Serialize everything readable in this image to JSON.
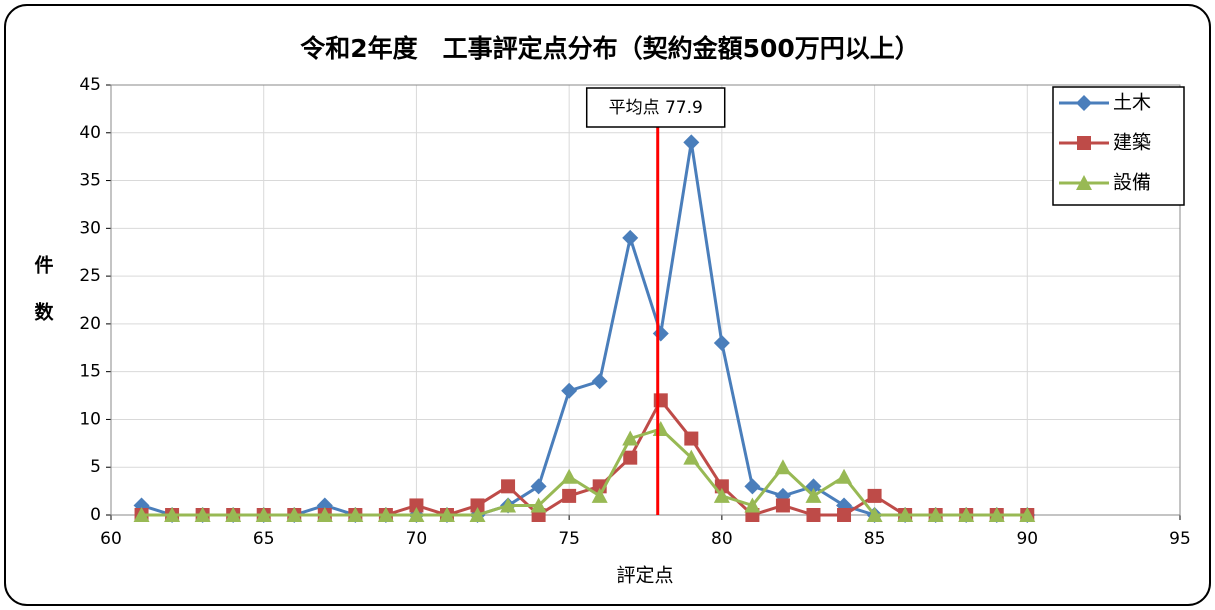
{
  "chart_data": {
    "type": "line",
    "title": "令和2年度　工事評定点分布（契約金額500万円以上）",
    "x_label": "評定点",
    "y_label": "件数",
    "x": [
      61,
      62,
      63,
      64,
      65,
      66,
      67,
      68,
      69,
      70,
      71,
      72,
      73,
      74,
      75,
      76,
      77,
      78,
      79,
      80,
      81,
      82,
      83,
      84,
      85,
      86,
      87,
      88,
      89,
      90
    ],
    "series": [
      {
        "name": "土木",
        "color": "#4a7ebb",
        "marker": "diamond",
        "values": [
          1,
          0,
          0,
          0,
          0,
          0,
          1,
          0,
          0,
          0,
          0,
          0,
          1,
          3,
          13,
          14,
          29,
          19,
          39,
          18,
          3,
          2,
          3,
          1,
          0,
          0,
          0,
          0,
          0,
          0
        ]
      },
      {
        "name": "建築",
        "color": "#be4b48",
        "marker": "square",
        "values": [
          0,
          0,
          0,
          0,
          0,
          0,
          0,
          0,
          0,
          1,
          0,
          1,
          3,
          0,
          2,
          3,
          6,
          12,
          8,
          3,
          0,
          1,
          0,
          0,
          2,
          0,
          0,
          0,
          0,
          0
        ]
      },
      {
        "name": "設備",
        "color": "#98b954",
        "marker": "triangle",
        "values": [
          0,
          0,
          0,
          0,
          0,
          0,
          0,
          0,
          0,
          0,
          0,
          0,
          1,
          1,
          4,
          2,
          8,
          9,
          6,
          2,
          1,
          5,
          2,
          4,
          0,
          0,
          0,
          0,
          0,
          0
        ]
      }
    ],
    "mean": {
      "value": 77.9,
      "label": "平均点 77.9",
      "color": "#ff0000"
    },
    "xlim": [
      60,
      95
    ],
    "xticks": [
      60,
      65,
      70,
      75,
      80,
      85,
      90,
      95
    ],
    "ylim": [
      0,
      45
    ],
    "yticks": [
      0,
      5,
      10,
      15,
      20,
      25,
      30,
      35,
      40,
      45
    ],
    "grid": true,
    "legend": "top-right"
  }
}
